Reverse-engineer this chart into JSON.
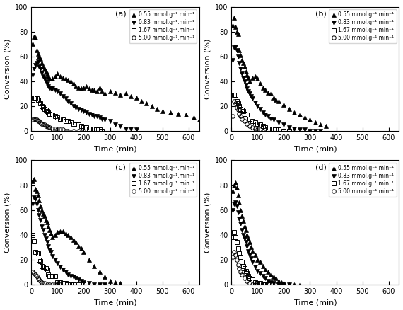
{
  "panel_labels": [
    "(a)",
    "(b)",
    "(c)",
    "(d)"
  ],
  "xlabel": "Time (min)",
  "ylabel": "Conversion (%)",
  "xlim": [
    0,
    640
  ],
  "ylim": [
    0,
    100
  ],
  "xticks": [
    0,
    100,
    200,
    300,
    400,
    500,
    600
  ],
  "yticks": [
    0,
    20,
    40,
    60,
    80,
    100
  ],
  "legend_labels": [
    "0.55 mmol.g⁻¹.min⁻¹",
    "0.83 mmol.g⁻¹.min⁻¹",
    "1.67 mmol.g⁻¹.min⁻¹",
    "5.00 mmol.g⁻¹.min⁻¹"
  ],
  "markers": [
    "^",
    "v",
    "s",
    "o"
  ],
  "marker_filled": [
    true,
    true,
    false,
    false
  ],
  "marker_size": 4,
  "color": "black",
  "panels": {
    "a": {
      "series0_x": [
        5,
        10,
        15,
        20,
        25,
        30,
        35,
        40,
        45,
        50,
        55,
        60,
        65,
        70,
        80,
        90,
        100,
        110,
        120,
        130,
        140,
        150,
        160,
        170,
        180,
        190,
        200,
        210,
        220,
        230,
        240,
        250,
        260,
        270,
        280,
        300,
        320,
        340,
        360,
        380,
        400,
        420,
        440,
        460,
        480,
        500,
        530,
        560,
        590,
        620,
        640
      ],
      "series0_y": [
        70,
        76,
        75,
        65,
        62,
        60,
        58,
        55,
        52,
        50,
        48,
        46,
        44,
        42,
        42,
        44,
        46,
        44,
        43,
        42,
        41,
        40,
        38,
        36,
        35,
        34,
        35,
        36,
        34,
        33,
        33,
        32,
        35,
        32,
        30,
        32,
        31,
        29,
        30,
        28,
        27,
        24,
        22,
        20,
        18,
        16,
        15,
        14,
        13,
        11,
        9
      ],
      "series1_x": [
        5,
        10,
        15,
        20,
        25,
        30,
        35,
        40,
        45,
        50,
        55,
        60,
        65,
        70,
        75,
        80,
        90,
        100,
        110,
        120,
        130,
        140,
        150,
        160,
        170,
        180,
        190,
        200,
        210,
        220,
        230,
        240,
        250,
        260,
        270,
        280,
        300,
        320,
        340,
        360,
        380,
        400
      ],
      "series1_y": [
        45,
        50,
        53,
        55,
        56,
        52,
        50,
        47,
        44,
        42,
        40,
        38,
        36,
        35,
        34,
        34,
        33,
        32,
        30,
        28,
        26,
        24,
        22,
        20,
        19,
        18,
        17,
        16,
        15,
        14,
        13,
        12,
        12,
        11,
        10,
        9,
        8,
        5,
        4,
        2,
        2,
        1
      ],
      "series2_x": [
        5,
        10,
        15,
        20,
        25,
        30,
        35,
        40,
        45,
        50,
        55,
        60,
        65,
        70,
        75,
        80,
        90,
        100,
        110,
        120,
        130,
        140,
        150,
        160,
        170,
        180,
        190,
        200,
        210,
        220,
        230,
        240,
        250,
        260,
        270
      ],
      "series2_y": [
        25,
        27,
        27,
        26,
        25,
        23,
        22,
        20,
        19,
        18,
        17,
        16,
        15,
        14,
        13,
        13,
        12,
        11,
        10,
        9,
        8,
        8,
        7,
        6,
        5,
        5,
        4,
        3,
        3,
        2,
        2,
        2,
        1,
        1,
        0
      ],
      "series3_x": [
        5,
        10,
        15,
        20,
        25,
        30,
        35,
        40,
        45,
        50,
        55,
        60,
        65,
        70,
        80,
        90,
        100,
        110,
        120,
        130,
        140,
        160,
        180,
        200
      ],
      "series3_y": [
        9,
        10,
        10,
        9,
        8,
        8,
        7,
        6,
        5,
        5,
        4,
        4,
        3,
        3,
        2,
        2,
        1,
        1,
        1,
        0,
        0,
        0,
        0,
        0
      ]
    },
    "b": {
      "series0_x": [
        5,
        10,
        15,
        20,
        25,
        30,
        35,
        40,
        45,
        50,
        55,
        60,
        65,
        70,
        80,
        90,
        100,
        110,
        120,
        130,
        140,
        150,
        160,
        170,
        180,
        200,
        220,
        240,
        260,
        280,
        300,
        320,
        340,
        360
      ],
      "series0_y": [
        85,
        91,
        84,
        80,
        78,
        65,
        61,
        57,
        55,
        52,
        48,
        45,
        43,
        40,
        43,
        44,
        42,
        38,
        35,
        33,
        31,
        30,
        27,
        25,
        24,
        21,
        18,
        15,
        13,
        11,
        9,
        7,
        5,
        4
      ],
      "series1_x": [
        5,
        10,
        15,
        20,
        25,
        30,
        35,
        40,
        45,
        50,
        55,
        60,
        65,
        70,
        75,
        80,
        90,
        100,
        110,
        120,
        130,
        140,
        150,
        160,
        180,
        200,
        220,
        240,
        260,
        280,
        300,
        320,
        340
      ],
      "series1_y": [
        57,
        67,
        68,
        65,
        60,
        55,
        50,
        46,
        43,
        40,
        37,
        34,
        32,
        30,
        28,
        26,
        23,
        20,
        18,
        15,
        13,
        12,
        10,
        9,
        7,
        5,
        3,
        2,
        1,
        1,
        0,
        0,
        0
      ],
      "series2_x": [
        5,
        10,
        15,
        20,
        25,
        30,
        35,
        40,
        45,
        50,
        60,
        70,
        80,
        90,
        100,
        110,
        120,
        130,
        140,
        150,
        160,
        170,
        180,
        200,
        220
      ],
      "series2_y": [
        23,
        29,
        29,
        24,
        22,
        20,
        18,
        17,
        16,
        14,
        13,
        10,
        8,
        7,
        6,
        5,
        4,
        3,
        2,
        2,
        2,
        1,
        1,
        0,
        0
      ],
      "series3_x": [
        5,
        10,
        15,
        20,
        25,
        30,
        35,
        40,
        50,
        60,
        70,
        80,
        90,
        100,
        110,
        120
      ],
      "series3_y": [
        12,
        24,
        22,
        19,
        17,
        14,
        12,
        10,
        8,
        6,
        4,
        3,
        2,
        1,
        1,
        0
      ]
    },
    "c": {
      "series0_x": [
        5,
        10,
        15,
        20,
        25,
        30,
        35,
        40,
        45,
        50,
        55,
        60,
        65,
        70,
        75,
        80,
        90,
        100,
        110,
        120,
        130,
        140,
        150,
        160,
        170,
        180,
        190,
        200,
        220,
        240,
        260,
        280,
        300,
        320,
        340
      ],
      "series0_y": [
        83,
        85,
        77,
        75,
        72,
        68,
        63,
        60,
        57,
        55,
        52,
        50,
        47,
        44,
        41,
        38,
        40,
        42,
        43,
        43,
        41,
        40,
        38,
        36,
        34,
        31,
        29,
        26,
        20,
        15,
        10,
        6,
        3,
        2,
        1
      ],
      "series1_x": [
        5,
        10,
        15,
        20,
        25,
        30,
        35,
        40,
        45,
        50,
        55,
        60,
        65,
        70,
        75,
        80,
        90,
        100,
        110,
        120,
        130,
        140,
        150,
        160,
        170,
        180,
        190,
        200,
        220,
        240,
        260,
        280
      ],
      "series1_y": [
        65,
        70,
        69,
        65,
        60,
        56,
        52,
        47,
        44,
        40,
        37,
        34,
        31,
        28,
        26,
        23,
        20,
        17,
        14,
        12,
        10,
        8,
        7,
        6,
        5,
        4,
        3,
        2,
        1,
        0,
        0,
        0
      ],
      "series2_x": [
        5,
        10,
        15,
        20,
        25,
        30,
        35,
        40,
        45,
        50,
        55,
        60,
        65,
        70,
        80,
        90,
        100,
        110,
        120,
        130,
        140,
        150,
        160,
        180,
        200
      ],
      "series2_y": [
        40,
        35,
        26,
        25,
        25,
        20,
        19,
        15,
        14,
        14,
        13,
        12,
        8,
        7,
        7,
        7,
        2,
        2,
        1,
        1,
        0,
        0,
        0,
        0,
        0
      ],
      "series3_x": [
        5,
        10,
        15,
        20,
        25,
        30,
        35,
        40,
        50,
        60,
        70,
        80,
        90,
        100,
        110
      ],
      "series3_y": [
        10,
        9,
        8,
        7,
        5,
        4,
        3,
        2,
        1,
        0,
        0,
        0,
        0,
        0,
        0
      ]
    },
    "d": {
      "series0_x": [
        5,
        10,
        15,
        20,
        25,
        30,
        35,
        40,
        45,
        50,
        55,
        60,
        65,
        70,
        75,
        80,
        90,
        100,
        110,
        120,
        130,
        140,
        150,
        160,
        170,
        180,
        190,
        200,
        220,
        240,
        260
      ],
      "series0_y": [
        75,
        80,
        82,
        78,
        72,
        66,
        60,
        55,
        51,
        47,
        44,
        40,
        37,
        34,
        30,
        27,
        24,
        20,
        18,
        15,
        12,
        10,
        8,
        6,
        5,
        3,
        2,
        1,
        0,
        0,
        0
      ],
      "series1_x": [
        5,
        10,
        15,
        20,
        25,
        30,
        35,
        40,
        45,
        50,
        55,
        60,
        65,
        70,
        75,
        80,
        90,
        100,
        110,
        120,
        130,
        140,
        150,
        160,
        180,
        200,
        220
      ],
      "series1_y": [
        60,
        65,
        66,
        63,
        58,
        53,
        49,
        44,
        40,
        37,
        34,
        31,
        27,
        24,
        21,
        18,
        14,
        11,
        9,
        7,
        5,
        3,
        2,
        1,
        0,
        0,
        0
      ],
      "series2_x": [
        5,
        10,
        15,
        20,
        25,
        30,
        35,
        40,
        45,
        50,
        55,
        60,
        65,
        70,
        80,
        90,
        100,
        110,
        120,
        130,
        140,
        150
      ],
      "series2_y": [
        38,
        42,
        38,
        34,
        29,
        25,
        22,
        18,
        15,
        13,
        11,
        9,
        7,
        5,
        4,
        2,
        1,
        1,
        0,
        0,
        0,
        0
      ],
      "series3_x": [
        5,
        10,
        15,
        20,
        25,
        30,
        35,
        40,
        50,
        60,
        70,
        80,
        90,
        100
      ],
      "series3_y": [
        22,
        26,
        24,
        20,
        16,
        13,
        10,
        8,
        5,
        3,
        1,
        0,
        0,
        0
      ]
    }
  }
}
